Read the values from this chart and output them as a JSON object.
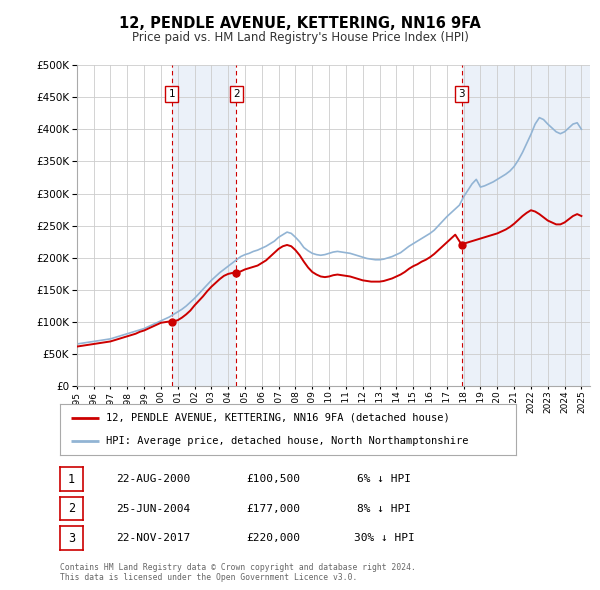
{
  "title": "12, PENDLE AVENUE, KETTERING, NN16 9FA",
  "subtitle": "Price paid vs. HM Land Registry's House Price Index (HPI)",
  "legend_label_red": "12, PENDLE AVENUE, KETTERING, NN16 9FA (detached house)",
  "legend_label_blue": "HPI: Average price, detached house, North Northamptonshire",
  "footer1": "Contains HM Land Registry data © Crown copyright and database right 2024.",
  "footer2": "This data is licensed under the Open Government Licence v3.0.",
  "transactions": [
    {
      "num": 1,
      "date": "22-AUG-2000",
      "date_val": 2000.64,
      "price": 100500,
      "pct": "6% ↓ HPI"
    },
    {
      "num": 2,
      "date": "25-JUN-2004",
      "date_val": 2004.48,
      "price": 177000,
      "pct": "8% ↓ HPI"
    },
    {
      "num": 3,
      "date": "22-NOV-2017",
      "date_val": 2017.89,
      "price": 220000,
      "pct": "30% ↓ HPI"
    }
  ],
  "hpi_color": "#92b4d4",
  "price_color": "#cc0000",
  "dot_color": "#cc0000",
  "shade_color": "#c8d8f0",
  "grid_color": "#cccccc",
  "background_color": "#ffffff",
  "ylim": [
    0,
    500000
  ],
  "yticks": [
    0,
    50000,
    100000,
    150000,
    200000,
    250000,
    300000,
    350000,
    400000,
    450000,
    500000
  ],
  "xlim_start": 1995.0,
  "xlim_end": 2025.5,
  "xticks": [
    1995,
    1996,
    1997,
    1998,
    1999,
    2000,
    2001,
    2002,
    2003,
    2004,
    2005,
    2006,
    2007,
    2008,
    2009,
    2010,
    2011,
    2012,
    2013,
    2014,
    2015,
    2016,
    2017,
    2018,
    2019,
    2020,
    2021,
    2022,
    2023,
    2024,
    2025
  ]
}
